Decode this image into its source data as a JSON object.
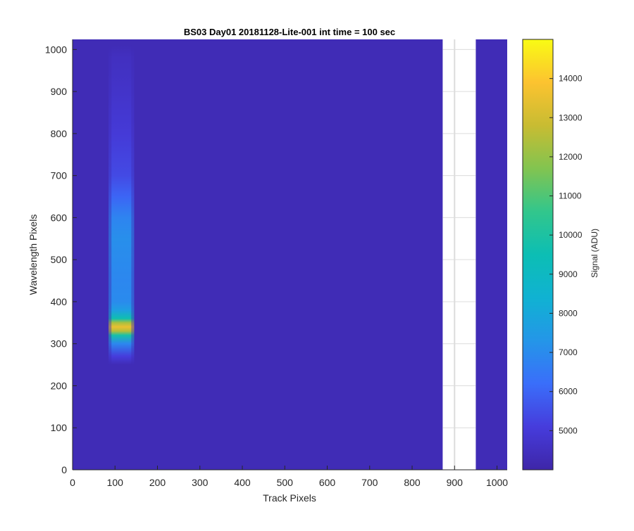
{
  "chart_data": {
    "type": "heatmap",
    "title": "BS03 Day01 20181128-Lite-001 int time = 100 sec",
    "xlabel": "Track Pixels",
    "ylabel": "Wavelength Pixels",
    "colorbar_label": "Signal (ADU)",
    "xlim": [
      0,
      1024
    ],
    "ylim": [
      0,
      1024
    ],
    "x_ticks": [
      0,
      100,
      200,
      300,
      400,
      500,
      600,
      700,
      800,
      900,
      1000
    ],
    "y_ticks": [
      0,
      100,
      200,
      300,
      400,
      500,
      600,
      700,
      800,
      900,
      1000
    ],
    "color_range": [
      4000,
      15000
    ],
    "colorbar_ticks": [
      5000,
      6000,
      7000,
      8000,
      9000,
      10000,
      11000,
      12000,
      13000,
      14000
    ],
    "colormap": "parula",
    "background_signal": 4300,
    "bright_band": {
      "track_range": [
        85,
        145
      ],
      "wavelength_profile": [
        [
          250,
          4300
        ],
        [
          270,
          5100
        ],
        [
          300,
          6900
        ],
        [
          320,
          9800
        ],
        [
          330,
          12500
        ],
        [
          340,
          13500
        ],
        [
          350,
          12300
        ],
        [
          360,
          9600
        ],
        [
          380,
          7600
        ],
        [
          400,
          7000
        ],
        [
          450,
          6900
        ],
        [
          500,
          7000
        ],
        [
          550,
          7100
        ],
        [
          600,
          6800
        ],
        [
          650,
          6000
        ],
        [
          700,
          5400
        ],
        [
          800,
          5000
        ],
        [
          900,
          4700
        ],
        [
          980,
          4500
        ],
        [
          1010,
          4300
        ]
      ]
    },
    "missing_data_track_range": [
      872,
      950
    ],
    "grid": "on",
    "colors": {
      "background": "#3D2DA8",
      "missing": "#FFFFFF"
    }
  }
}
